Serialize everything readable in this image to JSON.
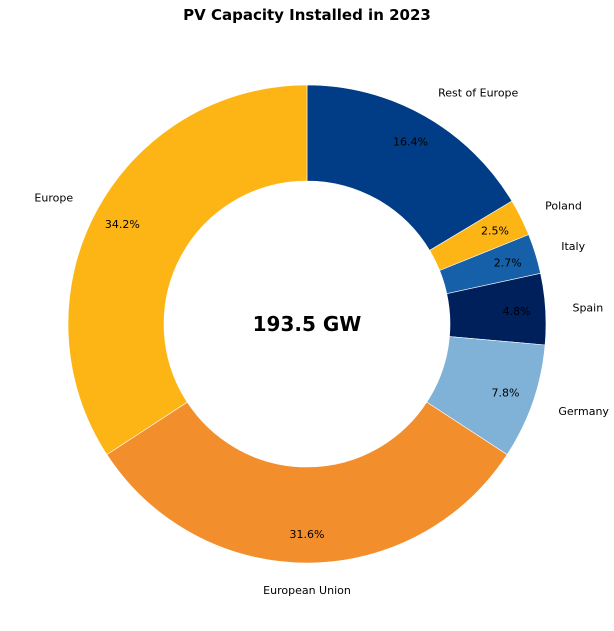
{
  "chart_data": {
    "type": "pie",
    "title": "PV Capacity Installed in 2023",
    "center_text": "193.5 GW",
    "donut": true,
    "start_angle_deg": 90,
    "direction": "clockwise",
    "slices": [
      {
        "label": "Rest of Europe",
        "value": 16.4,
        "pct_label": "16.4%",
        "color": "#003d86"
      },
      {
        "label": "Poland",
        "value": 2.5,
        "pct_label": "2.5%",
        "color": "#fdb515"
      },
      {
        "label": "Italy",
        "value": 2.7,
        "pct_label": "2.7%",
        "color": "#1560a8"
      },
      {
        "label": "Spain",
        "value": 4.8,
        "pct_label": "4.8%",
        "color": "#00205c"
      },
      {
        "label": "Germany",
        "value": 7.8,
        "pct_label": "7.8%",
        "color": "#7fb2d6"
      },
      {
        "label": "European Union",
        "value": 31.6,
        "pct_label": "31.6%",
        "color": "#f28f2c"
      },
      {
        "label": "Europe",
        "value": 34.2,
        "pct_label": "34.2%",
        "color": "#fdb515"
      }
    ]
  }
}
